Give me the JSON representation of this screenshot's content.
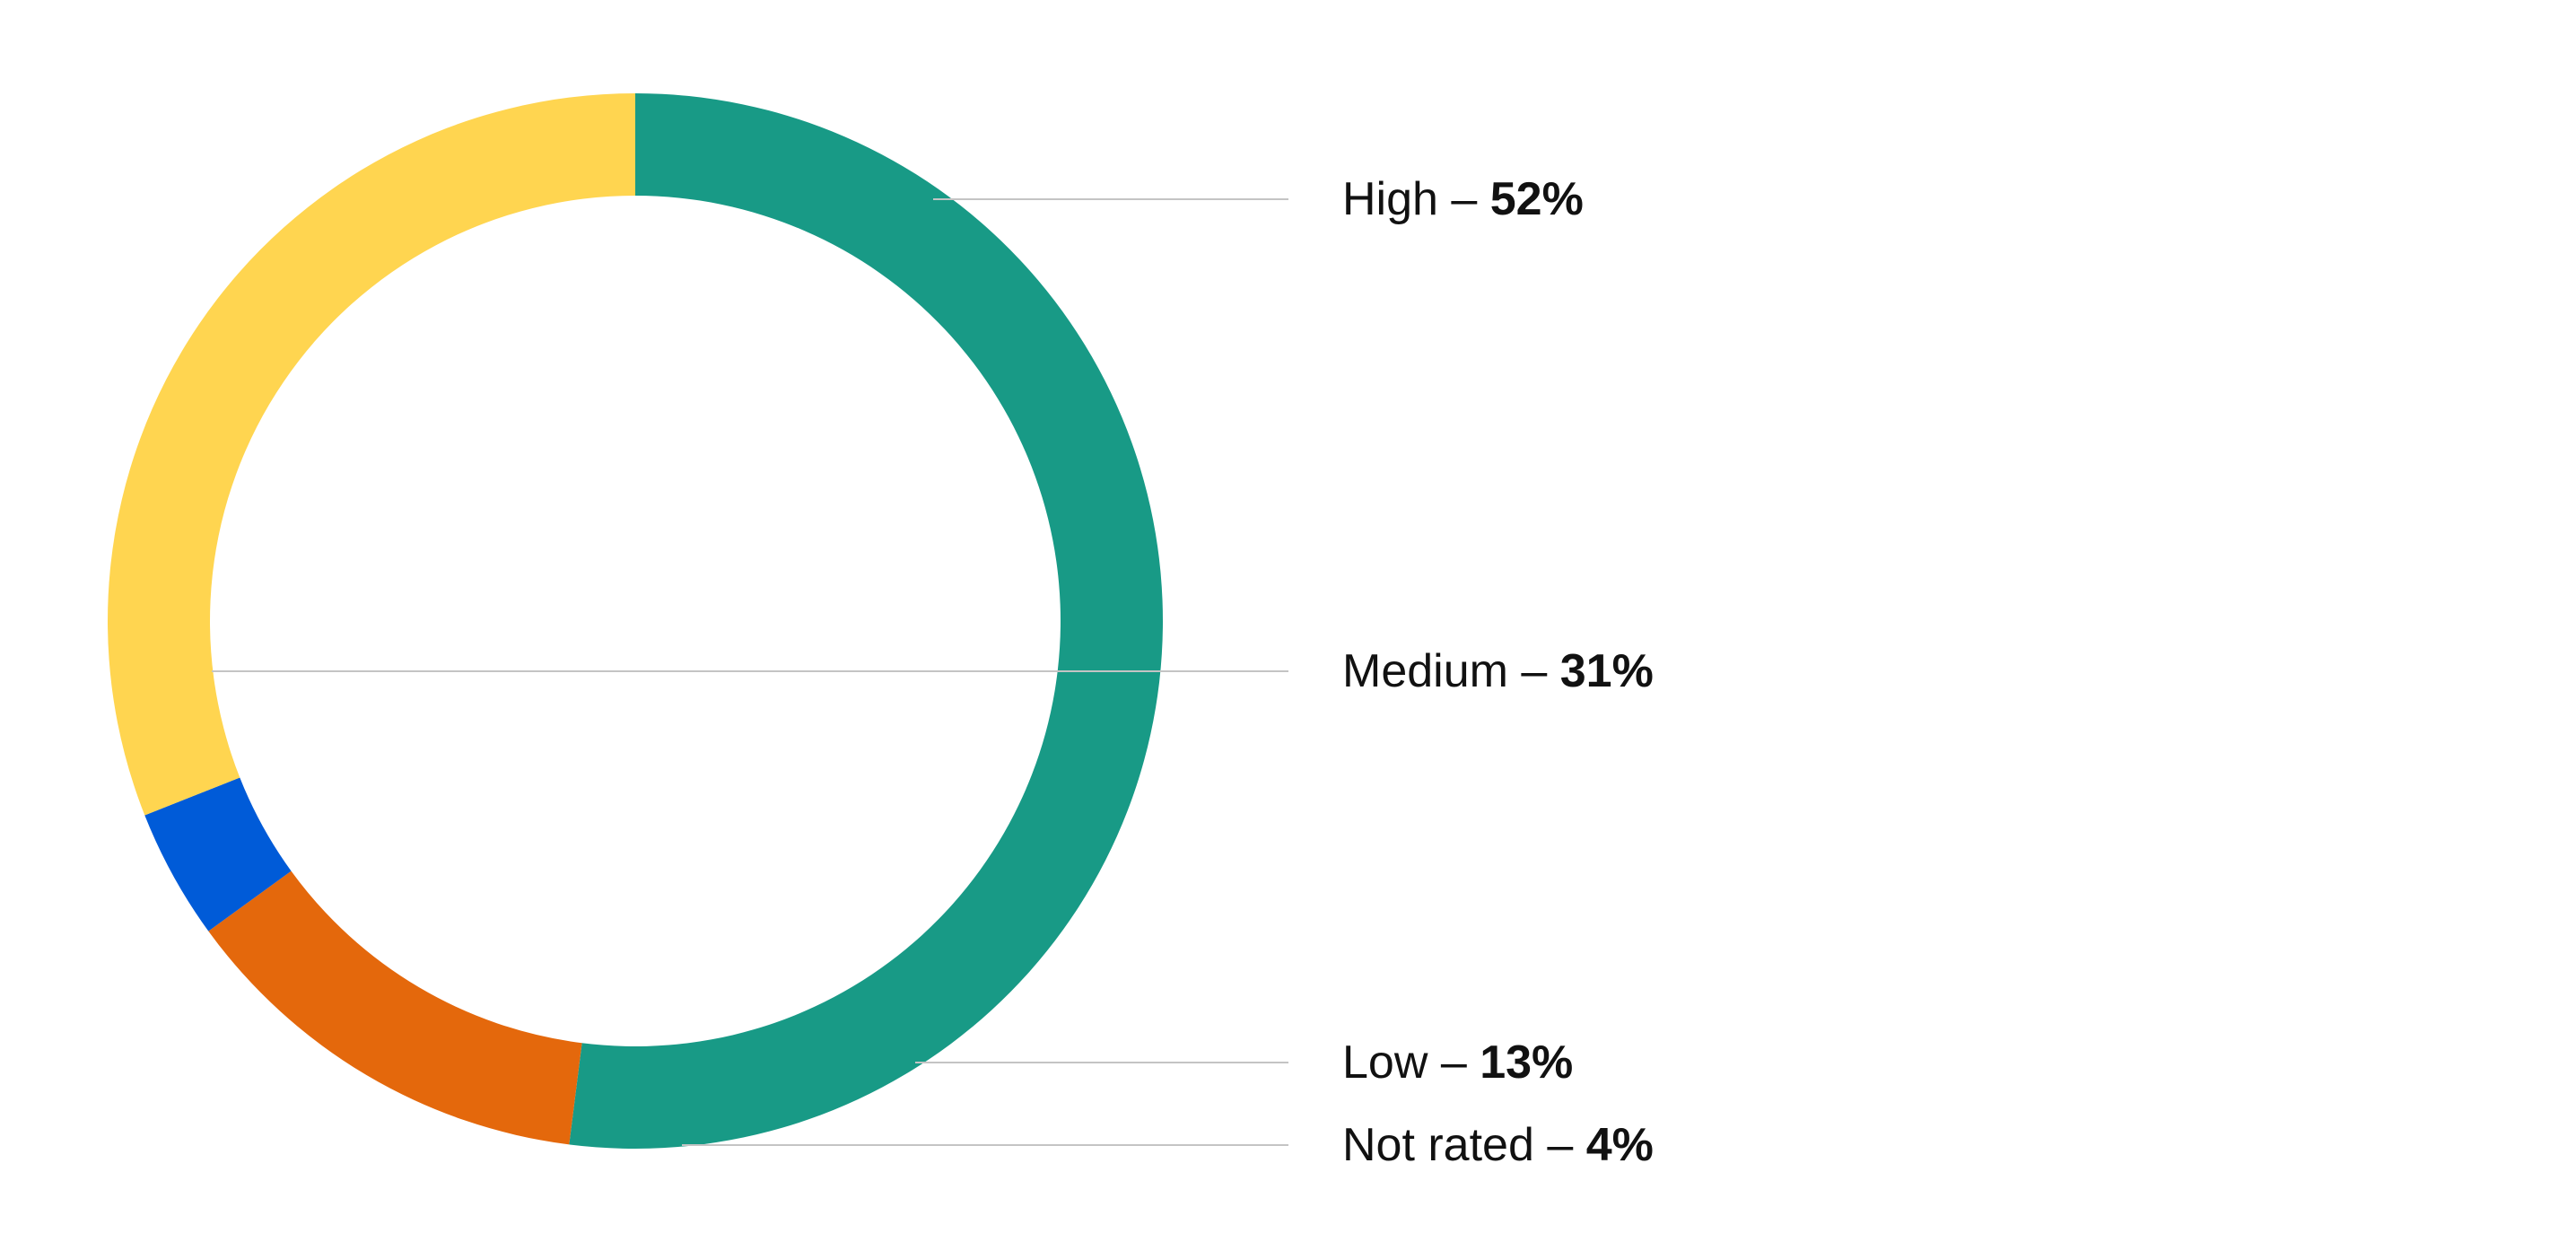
{
  "chart_data": {
    "type": "pie",
    "variant": "donut",
    "title": "",
    "slices": [
      {
        "label": "High",
        "value": 52,
        "display": "52%",
        "color": "#189a86"
      },
      {
        "label": "Low",
        "value": 13,
        "display": "13%",
        "color": "#e4680c"
      },
      {
        "label": "Not rated",
        "value": 4,
        "display": "4%",
        "color": "#005bd8"
      },
      {
        "label": "Medium",
        "value": 31,
        "display": "31%",
        "color": "#ffd550"
      }
    ],
    "separator": "–",
    "legend_placement": "right",
    "start": "top",
    "direction": "clockwise"
  }
}
